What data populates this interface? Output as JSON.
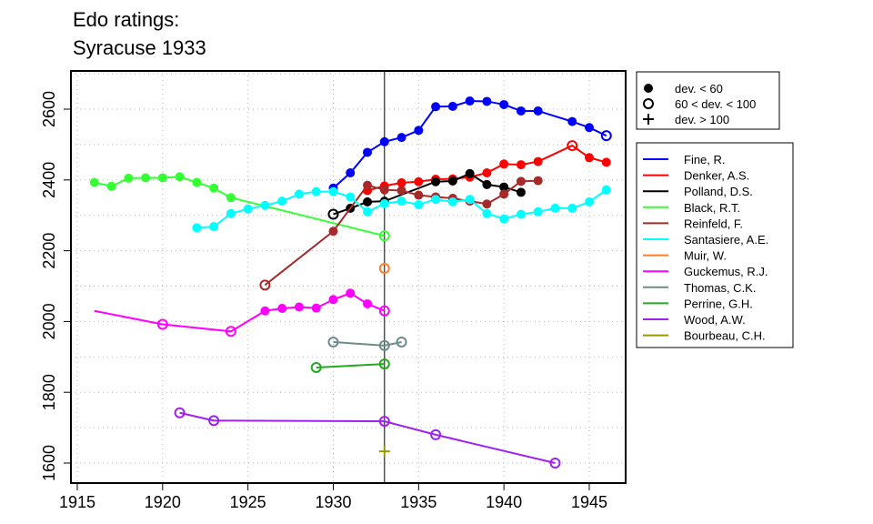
{
  "chart_data": {
    "type": "line",
    "title_lines": [
      "Edo ratings:",
      "Syracuse 1933"
    ],
    "xlim": [
      1915,
      1947
    ],
    "ylim": [
      1550,
      2720
    ],
    "x_ticks": [
      1915,
      1920,
      1925,
      1930,
      1935,
      1940,
      1945
    ],
    "y_ticks": [
      1600,
      1800,
      2000,
      2200,
      2400,
      2600
    ],
    "grid": true,
    "vline_x": 1933,
    "symbol_legend": [
      {
        "symbol": "filled-circle",
        "label": "dev. < 60"
      },
      {
        "symbol": "open-circle",
        "label": "60 < dev. < 100"
      },
      {
        "symbol": "plus",
        "label": "dev. > 100"
      }
    ],
    "series": [
      {
        "name": "Fine, R.",
        "color": "#0000FF",
        "points": [
          {
            "x": 1930,
            "y": 2377,
            "m": "f"
          },
          {
            "x": 1931,
            "y": 2420,
            "m": "f"
          },
          {
            "x": 1932,
            "y": 2478,
            "m": "f"
          },
          {
            "x": 1933,
            "y": 2508,
            "m": "f"
          },
          {
            "x": 1934,
            "y": 2520,
            "m": "f"
          },
          {
            "x": 1935,
            "y": 2540,
            "m": "f"
          },
          {
            "x": 1936,
            "y": 2607,
            "m": "f"
          },
          {
            "x": 1937,
            "y": 2608,
            "m": "f"
          },
          {
            "x": 1938,
            "y": 2623,
            "m": "f"
          },
          {
            "x": 1939,
            "y": 2622,
            "m": "f"
          },
          {
            "x": 1940,
            "y": 2613,
            "m": "f"
          },
          {
            "x": 1941,
            "y": 2595,
            "m": "f"
          },
          {
            "x": 1942,
            "y": 2595,
            "m": "f"
          },
          {
            "x": 1944,
            "y": 2565,
            "m": "f"
          },
          {
            "x": 1945,
            "y": 2548,
            "m": "f"
          },
          {
            "x": 1946,
            "y": 2525,
            "m": "o"
          }
        ]
      },
      {
        "name": "Denker, A.S.",
        "color": "#FF0000",
        "points": [
          {
            "x": 1932,
            "y": 2370,
            "m": "f"
          },
          {
            "x": 1933,
            "y": 2383,
            "m": "f"
          },
          {
            "x": 1934,
            "y": 2392,
            "m": "f"
          },
          {
            "x": 1935,
            "y": 2395,
            "m": "f"
          },
          {
            "x": 1936,
            "y": 2402,
            "m": "f"
          },
          {
            "x": 1937,
            "y": 2403,
            "m": "f"
          },
          {
            "x": 1938,
            "y": 2408,
            "m": "f"
          },
          {
            "x": 1939,
            "y": 2420,
            "m": "f"
          },
          {
            "x": 1940,
            "y": 2445,
            "m": "f"
          },
          {
            "x": 1941,
            "y": 2443,
            "m": "f"
          },
          {
            "x": 1942,
            "y": 2452,
            "m": "f"
          },
          {
            "x": 1944,
            "y": 2497,
            "m": "o"
          },
          {
            "x": 1945,
            "y": 2463,
            "m": "f"
          },
          {
            "x": 1946,
            "y": 2450,
            "m": "f"
          }
        ]
      },
      {
        "name": "Polland, D.S.",
        "color": "#000000",
        "points": [
          {
            "x": 1930,
            "y": 2303,
            "m": "o"
          },
          {
            "x": 1931,
            "y": 2320,
            "m": "f"
          },
          {
            "x": 1932,
            "y": 2338,
            "m": "f"
          },
          {
            "x": 1933,
            "y": 2340,
            "m": "f"
          },
          {
            "x": 1936,
            "y": 2395,
            "m": "f"
          },
          {
            "x": 1937,
            "y": 2397,
            "m": "f"
          },
          {
            "x": 1938,
            "y": 2418,
            "m": "f"
          },
          {
            "x": 1939,
            "y": 2387,
            "m": "f"
          },
          {
            "x": 1940,
            "y": 2380,
            "m": "f"
          },
          {
            "x": 1941,
            "y": 2365,
            "m": "f"
          }
        ]
      },
      {
        "name": "Black, R.T.",
        "color": "#33FF33",
        "points": [
          {
            "x": 1916,
            "y": 2393,
            "m": "f"
          },
          {
            "x": 1917,
            "y": 2382,
            "m": "f"
          },
          {
            "x": 1918,
            "y": 2405,
            "m": "f"
          },
          {
            "x": 1919,
            "y": 2406,
            "m": "f"
          },
          {
            "x": 1920,
            "y": 2406,
            "m": "f"
          },
          {
            "x": 1921,
            "y": 2409,
            "m": "f"
          },
          {
            "x": 1922,
            "y": 2393,
            "m": "f"
          },
          {
            "x": 1923,
            "y": 2377,
            "m": "f"
          },
          {
            "x": 1924,
            "y": 2350,
            "m": "f"
          },
          {
            "x": 1933,
            "y": 2242,
            "m": "o"
          }
        ]
      },
      {
        "name": "Reinfeld, F.",
        "color": "#A52A2A",
        "points": [
          {
            "x": 1926,
            "y": 2103,
            "m": "o"
          },
          {
            "x": 1930,
            "y": 2255,
            "m": "f"
          },
          {
            "x": 1932,
            "y": 2385,
            "m": "f"
          },
          {
            "x": 1933,
            "y": 2372,
            "m": "f"
          },
          {
            "x": 1934,
            "y": 2370,
            "m": "f"
          },
          {
            "x": 1935,
            "y": 2357,
            "m": "f"
          },
          {
            "x": 1936,
            "y": 2352,
            "m": "f"
          },
          {
            "x": 1937,
            "y": 2348,
            "m": "f"
          },
          {
            "x": 1938,
            "y": 2340,
            "m": "f"
          },
          {
            "x": 1939,
            "y": 2332,
            "m": "f"
          },
          {
            "x": 1940,
            "y": 2360,
            "m": "f"
          },
          {
            "x": 1941,
            "y": 2396,
            "m": "f"
          },
          {
            "x": 1942,
            "y": 2398,
            "m": "f"
          }
        ]
      },
      {
        "name": "Santasiere, A.E.",
        "color": "#00FFFF",
        "points": [
          {
            "x": 1922,
            "y": 2265,
            "m": "f"
          },
          {
            "x": 1923,
            "y": 2268,
            "m": "f"
          },
          {
            "x": 1924,
            "y": 2305,
            "m": "f"
          },
          {
            "x": 1925,
            "y": 2318,
            "m": "f"
          },
          {
            "x": 1926,
            "y": 2328,
            "m": "f"
          },
          {
            "x": 1927,
            "y": 2340,
            "m": "f"
          },
          {
            "x": 1928,
            "y": 2360,
            "m": "f"
          },
          {
            "x": 1929,
            "y": 2367,
            "m": "f"
          },
          {
            "x": 1930,
            "y": 2367,
            "m": "f"
          },
          {
            "x": 1931,
            "y": 2352,
            "m": "f"
          },
          {
            "x": 1932,
            "y": 2310,
            "m": "f"
          },
          {
            "x": 1933,
            "y": 2333,
            "m": "f"
          },
          {
            "x": 1934,
            "y": 2340,
            "m": "f"
          },
          {
            "x": 1935,
            "y": 2330,
            "m": "f"
          },
          {
            "x": 1936,
            "y": 2345,
            "m": "f"
          },
          {
            "x": 1937,
            "y": 2338,
            "m": "f"
          },
          {
            "x": 1938,
            "y": 2345,
            "m": "f"
          },
          {
            "x": 1939,
            "y": 2305,
            "m": "f"
          },
          {
            "x": 1940,
            "y": 2290,
            "m": "f"
          },
          {
            "x": 1941,
            "y": 2303,
            "m": "f"
          },
          {
            "x": 1942,
            "y": 2310,
            "m": "f"
          },
          {
            "x": 1943,
            "y": 2320,
            "m": "f"
          },
          {
            "x": 1944,
            "y": 2320,
            "m": "f"
          },
          {
            "x": 1945,
            "y": 2338,
            "m": "f"
          },
          {
            "x": 1946,
            "y": 2372,
            "m": "f"
          }
        ]
      },
      {
        "name": "Muir, W.",
        "color": "#FF7F24",
        "points": [
          {
            "x": 1933,
            "y": 2150,
            "m": "o"
          }
        ]
      },
      {
        "name": "Guckemus, R.J.",
        "color": "#FF00FF",
        "points": [
          {
            "x": 1916,
            "y": 2030,
            "m": "none"
          },
          {
            "x": 1920,
            "y": 1992,
            "m": "o"
          },
          {
            "x": 1924,
            "y": 1972,
            "m": "o"
          },
          {
            "x": 1926,
            "y": 2030,
            "m": "f"
          },
          {
            "x": 1927,
            "y": 2037,
            "m": "f"
          },
          {
            "x": 1928,
            "y": 2041,
            "m": "f"
          },
          {
            "x": 1929,
            "y": 2038,
            "m": "f"
          },
          {
            "x": 1930,
            "y": 2062,
            "m": "f"
          },
          {
            "x": 1931,
            "y": 2080,
            "m": "f"
          },
          {
            "x": 1932,
            "y": 2050,
            "m": "f"
          },
          {
            "x": 1933,
            "y": 2030,
            "m": "o"
          }
        ]
      },
      {
        "name": "Thomas, C.K.",
        "color": "#6E8B8B",
        "points": [
          {
            "x": 1930,
            "y": 1942,
            "m": "o"
          },
          {
            "x": 1933,
            "y": 1932,
            "m": "o"
          },
          {
            "x": 1934,
            "y": 1942,
            "m": "o"
          }
        ]
      },
      {
        "name": "Perrine, G.H.",
        "color": "#22AA22",
        "points": [
          {
            "x": 1929,
            "y": 1870,
            "m": "o"
          },
          {
            "x": 1933,
            "y": 1880,
            "m": "o"
          }
        ]
      },
      {
        "name": "Wood, A.W.",
        "color": "#A020F0",
        "points": [
          {
            "x": 1921,
            "y": 1742,
            "m": "o"
          },
          {
            "x": 1923,
            "y": 1720,
            "m": "o"
          },
          {
            "x": 1933,
            "y": 1718,
            "m": "o"
          },
          {
            "x": 1936,
            "y": 1680,
            "m": "o"
          },
          {
            "x": 1943,
            "y": 1600,
            "m": "o"
          }
        ]
      },
      {
        "name": "Bourbeau, C.H.",
        "color": "#999900",
        "points": [
          {
            "x": 1933,
            "y": 1633,
            "m": "p"
          }
        ]
      }
    ]
  }
}
